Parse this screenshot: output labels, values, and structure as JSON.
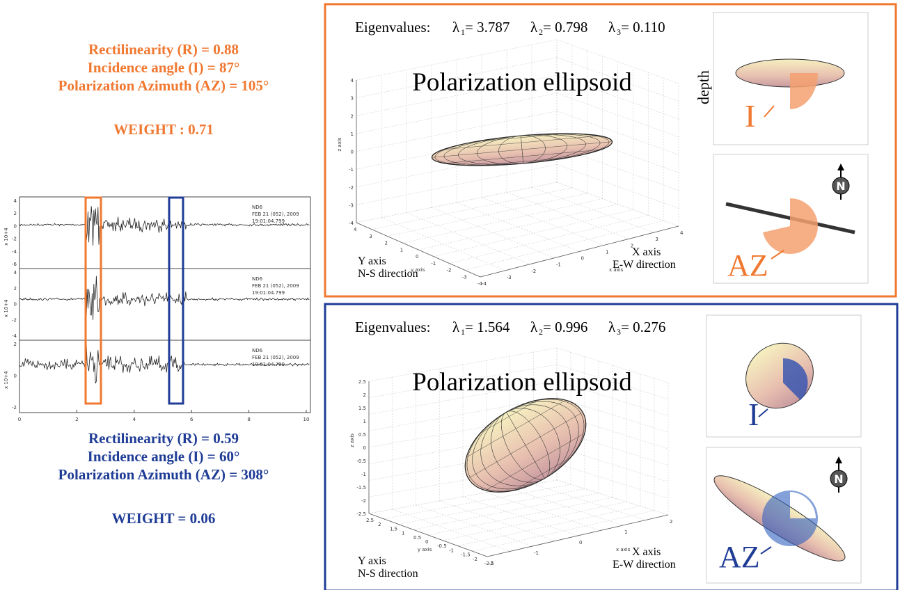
{
  "top_stats": {
    "color": "#f07830",
    "lines": [
      "Rectilinearity (R) = 0.88",
      "Incidence angle (I) = 87°",
      "Polarization Azimuth (AZ) = 105°"
    ],
    "weight": "WEIGHT : 0.71"
  },
  "bottom_stats": {
    "color": "#1f3c96",
    "lines": [
      "Rectilinearity (R) = 0.59",
      "Incidence angle (I) = 60°",
      "Polarization Azimuth (AZ) = 308°"
    ],
    "weight": "WEIGHT = 0.06"
  },
  "seismogram": {
    "xticks": [
      "0",
      "2",
      "4",
      "6",
      "8",
      "10"
    ],
    "traces": [
      {
        "station": "ND6",
        "date": "FEB 21 (052), 2009",
        "time": "19:01:04.799",
        "unit": "x 10+4",
        "yticks": [
          "4",
          "2",
          "0",
          "-2",
          "-4",
          "-6"
        ]
      },
      {
        "station": "ND6",
        "date": "FEB 21 (052), 2009",
        "time": "19:01:04.799",
        "unit": "x 10+4",
        "yticks": [
          "4",
          "2",
          "0",
          "-2",
          "-4"
        ]
      },
      {
        "station": "ND6",
        "date": "FEB 21 (052), 2009",
        "time": "19:01:04.799",
        "unit": "x 10+4",
        "yticks": [
          "2",
          "0",
          "-2"
        ]
      }
    ]
  },
  "panels": [
    {
      "eigen_label": "Eigenvalues:",
      "eigenvalues": [
        {
          "symbol": "λ",
          "index": "1",
          "value": "= 3.787"
        },
        {
          "symbol": "λ",
          "index": "2",
          "value": "= 0.798"
        },
        {
          "symbol": "λ",
          "index": "3",
          "value": "= 0.110"
        }
      ],
      "title": "Polarization ellipsoid",
      "y_axis": "Y axis",
      "y_dir": "N-S direction",
      "x_axis": "X axis",
      "x_dir": "E-W direction",
      "z_label": "z axis",
      "y_label": "y axis",
      "x_label": "x axis",
      "zticks": [
        "4",
        "3",
        "2",
        "1",
        "0",
        "-1",
        "-2",
        "-3",
        "-4"
      ],
      "yticks": [
        "4",
        "3",
        "2",
        "1",
        "0",
        "-1",
        "-2",
        "-3",
        "-4"
      ],
      "xticks": [
        "-4",
        "-3",
        "-2",
        "-1",
        "0",
        "1",
        "2",
        "3",
        "4"
      ],
      "depth": "depth",
      "incidence": "I",
      "azimuth": "AZ",
      "north": "N"
    },
    {
      "eigen_label": "Eigenvalues:",
      "eigenvalues": [
        {
          "symbol": "λ",
          "index": "1",
          "value": "= 1.564"
        },
        {
          "symbol": "λ",
          "index": "2",
          "value": "= 0.996"
        },
        {
          "symbol": "λ",
          "index": "3",
          "value": "= 0.276"
        }
      ],
      "title": "Polarization ellipsoid",
      "y_axis": "Y axis",
      "y_dir": "N-S direction",
      "x_axis": "X axis",
      "x_dir": "E-W direction",
      "z_label": "z axis",
      "y_label": "y axis",
      "x_label": "x axis",
      "zticks": [
        "2.5",
        "2",
        "1.5",
        "1",
        "0.5",
        "0",
        "-0.5",
        "-1",
        "-1.5",
        "-2",
        "-2.5"
      ],
      "yticks": [
        "2.5",
        "2",
        "1.5",
        "1",
        "0.5",
        "0",
        "-0.5",
        "-1",
        "-1.5",
        "-2",
        "-2.5"
      ],
      "xticks": [
        "-2",
        "-1",
        "0",
        "1",
        "2"
      ],
      "incidence": "I",
      "azimuth": "AZ",
      "north": "N"
    }
  ]
}
